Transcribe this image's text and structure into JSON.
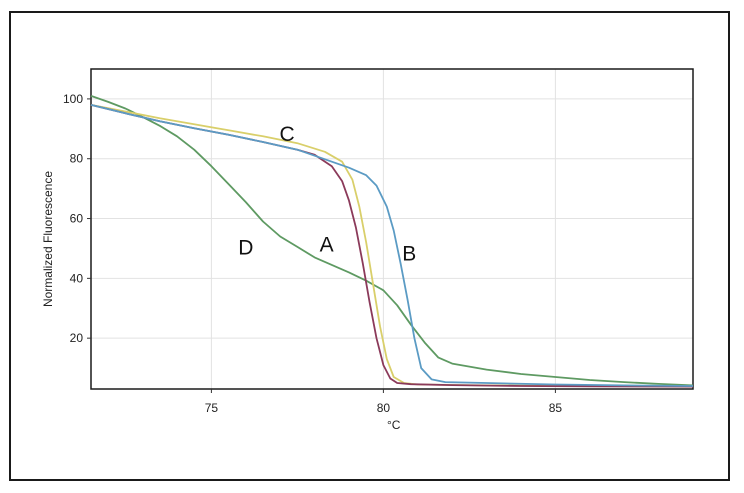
{
  "chart_data": {
    "type": "line",
    "title": "",
    "xlabel": "°C",
    "ylabel": "Normalized Fluorescence",
    "xlim": [
      71.5,
      89.0
    ],
    "ylim": [
      3,
      110
    ],
    "xticks": [
      75,
      80,
      85
    ],
    "yticks": [
      20,
      40,
      60,
      80,
      100
    ],
    "grid": true,
    "legend": "none",
    "series": [
      {
        "name": "A",
        "color": "#8b3a5a",
        "points": [
          [
            71.5,
            98
          ],
          [
            72.5,
            95.2
          ],
          [
            73.5,
            92.5
          ],
          [
            74.5,
            90.2
          ],
          [
            75.5,
            88
          ],
          [
            76.5,
            85.6
          ],
          [
            77.5,
            83
          ],
          [
            78,
            81.3
          ],
          [
            78.5,
            77.5
          ],
          [
            78.8,
            72.5
          ],
          [
            79.0,
            66
          ],
          [
            79.2,
            57
          ],
          [
            79.4,
            45
          ],
          [
            79.6,
            32
          ],
          [
            79.8,
            20
          ],
          [
            80.0,
            11
          ],
          [
            80.2,
            6.5
          ],
          [
            80.4,
            5
          ],
          [
            80.8,
            4.6
          ],
          [
            82,
            4.3
          ],
          [
            84,
            4
          ],
          [
            86,
            3.9
          ],
          [
            89,
            3.8
          ]
        ]
      },
      {
        "name": "B",
        "color": "#5b9bc4",
        "points": [
          [
            71.5,
            98
          ],
          [
            72.5,
            95.2
          ],
          [
            73.5,
            92.5
          ],
          [
            74.5,
            90.2
          ],
          [
            75.5,
            88
          ],
          [
            76.5,
            85.6
          ],
          [
            77.5,
            83
          ],
          [
            78.5,
            79
          ],
          [
            79.0,
            77
          ],
          [
            79.5,
            74.5
          ],
          [
            79.8,
            71
          ],
          [
            80.1,
            64
          ],
          [
            80.3,
            56
          ],
          [
            80.5,
            45
          ],
          [
            80.7,
            33
          ],
          [
            80.9,
            20
          ],
          [
            81.1,
            10
          ],
          [
            81.4,
            6.2
          ],
          [
            81.8,
            5.3
          ],
          [
            83,
            5
          ],
          [
            85,
            4.5
          ],
          [
            87,
            4.2
          ],
          [
            89,
            4
          ]
        ]
      },
      {
        "name": "C",
        "color": "#d9cf6a",
        "points": [
          [
            71.5,
            98
          ],
          [
            72.5,
            95.8
          ],
          [
            73.5,
            93.5
          ],
          [
            74.5,
            91.5
          ],
          [
            75.5,
            89.5
          ],
          [
            76.5,
            87.5
          ],
          [
            77.5,
            85.2
          ],
          [
            78.3,
            82.3
          ],
          [
            78.8,
            79
          ],
          [
            79.1,
            73
          ],
          [
            79.3,
            64
          ],
          [
            79.5,
            52
          ],
          [
            79.7,
            38
          ],
          [
            79.9,
            24
          ],
          [
            80.1,
            13
          ],
          [
            80.3,
            7
          ],
          [
            80.6,
            5
          ],
          [
            81,
            4.5
          ],
          [
            83,
            4.2
          ],
          [
            86,
            4
          ],
          [
            89,
            3.9
          ]
        ]
      },
      {
        "name": "D",
        "color": "#5e9a62",
        "points": [
          [
            71.5,
            101
          ],
          [
            72,
            99
          ],
          [
            72.5,
            96.8
          ],
          [
            73,
            94
          ],
          [
            73.5,
            91
          ],
          [
            74,
            87.5
          ],
          [
            74.5,
            83
          ],
          [
            75,
            77.5
          ],
          [
            75.5,
            71.5
          ],
          [
            76,
            65.5
          ],
          [
            76.5,
            59
          ],
          [
            77,
            54
          ],
          [
            77.5,
            50.5
          ],
          [
            78,
            47
          ],
          [
            78.5,
            44.5
          ],
          [
            79,
            42
          ],
          [
            79.5,
            39.2
          ],
          [
            80,
            36
          ],
          [
            80.4,
            31
          ],
          [
            80.8,
            24.5
          ],
          [
            81.2,
            18.5
          ],
          [
            81.6,
            13.5
          ],
          [
            82,
            11.5
          ],
          [
            83,
            9.5
          ],
          [
            84,
            8
          ],
          [
            85,
            7
          ],
          [
            86,
            6
          ],
          [
            87,
            5.3
          ],
          [
            88,
            4.7
          ],
          [
            89,
            4.2
          ]
        ]
      }
    ],
    "annotations": [
      {
        "text": "A",
        "x": 78.35,
        "y": 49
      },
      {
        "text": "B",
        "x": 80.75,
        "y": 46
      },
      {
        "text": "C",
        "x": 77.2,
        "y": 86
      },
      {
        "text": "D",
        "x": 76.0,
        "y": 48
      }
    ]
  }
}
